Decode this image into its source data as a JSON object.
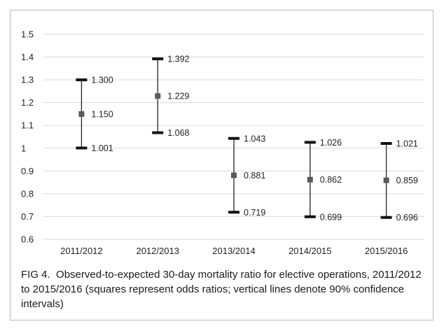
{
  "chart_data": {
    "type": "error-bar",
    "categories": [
      "2011/2012",
      "2012/2013",
      "2013/2014",
      "2014/2015",
      "2015/2016"
    ],
    "series": [
      {
        "point": 1.15,
        "lower": 1.001,
        "upper": 1.3,
        "labels": {
          "point": "1.150",
          "lower": "1.001",
          "upper": "1.300"
        }
      },
      {
        "point": 1.229,
        "lower": 1.068,
        "upper": 1.392,
        "labels": {
          "point": "1.229",
          "lower": "1.068",
          "upper": "1.392"
        }
      },
      {
        "point": 0.881,
        "lower": 0.719,
        "upper": 1.043,
        "labels": {
          "point": "0.881",
          "lower": "0.719",
          "upper": "1.043"
        }
      },
      {
        "point": 0.862,
        "lower": 0.699,
        "upper": 1.026,
        "labels": {
          "point": "0.862",
          "lower": "0.699",
          "upper": "1.026"
        }
      },
      {
        "point": 0.859,
        "lower": 0.696,
        "upper": 1.021,
        "labels": {
          "point": "0.859",
          "lower": "0.696",
          "upper": "1.021"
        }
      }
    ],
    "yticks": [
      "0.6",
      "0.7",
      "0.8",
      "0.9",
      "1",
      "1.1",
      "1.2",
      "1.3",
      "1.4",
      "1.5"
    ],
    "ylim": [
      0.6,
      1.5
    ],
    "grid": true,
    "colors": {
      "marker": "#595959",
      "whisker": "#222222",
      "grid": "#d9d9d9"
    }
  },
  "caption": {
    "fig_label": "FIG 4.",
    "text": "Observed-to-expected 30-day mortality ratio for elective operations, 2011/2012 to 2015/2016 (squares represent odds ratios; vertical lines denote 90% confidence intervals)"
  }
}
